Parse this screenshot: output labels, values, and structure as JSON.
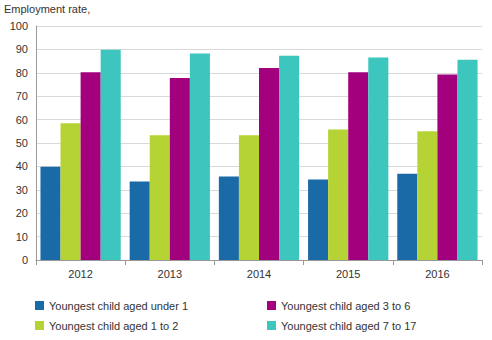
{
  "chart_data": {
    "type": "bar",
    "y_label": "Employment rate,",
    "categories": [
      "2012",
      "2013",
      "2014",
      "2015",
      "2016"
    ],
    "series": [
      {
        "name": "Youngest child aged under 1",
        "color": "#1a6aa8",
        "values": [
          39.8,
          33.5,
          35.7,
          34.4,
          36.9
        ]
      },
      {
        "name": "Youngest child aged 1 to 2",
        "color": "#b5d334",
        "values": [
          58.4,
          53.3,
          53.3,
          55.8,
          55.0
        ]
      },
      {
        "name": "Youngest child aged 3 to 6",
        "color": "#a3007e",
        "values": [
          80.2,
          77.8,
          82.0,
          80.2,
          79.3
        ]
      },
      {
        "name": "Youngest child aged 7 to 17",
        "color": "#3dc6bd",
        "values": [
          89.8,
          88.2,
          87.3,
          86.5,
          85.6
        ]
      }
    ],
    "ylim": [
      0,
      100
    ],
    "yticks": [
      0,
      10,
      20,
      30,
      40,
      50,
      60,
      70,
      80,
      90,
      100
    ],
    "grid": true,
    "legend": "bottom"
  }
}
